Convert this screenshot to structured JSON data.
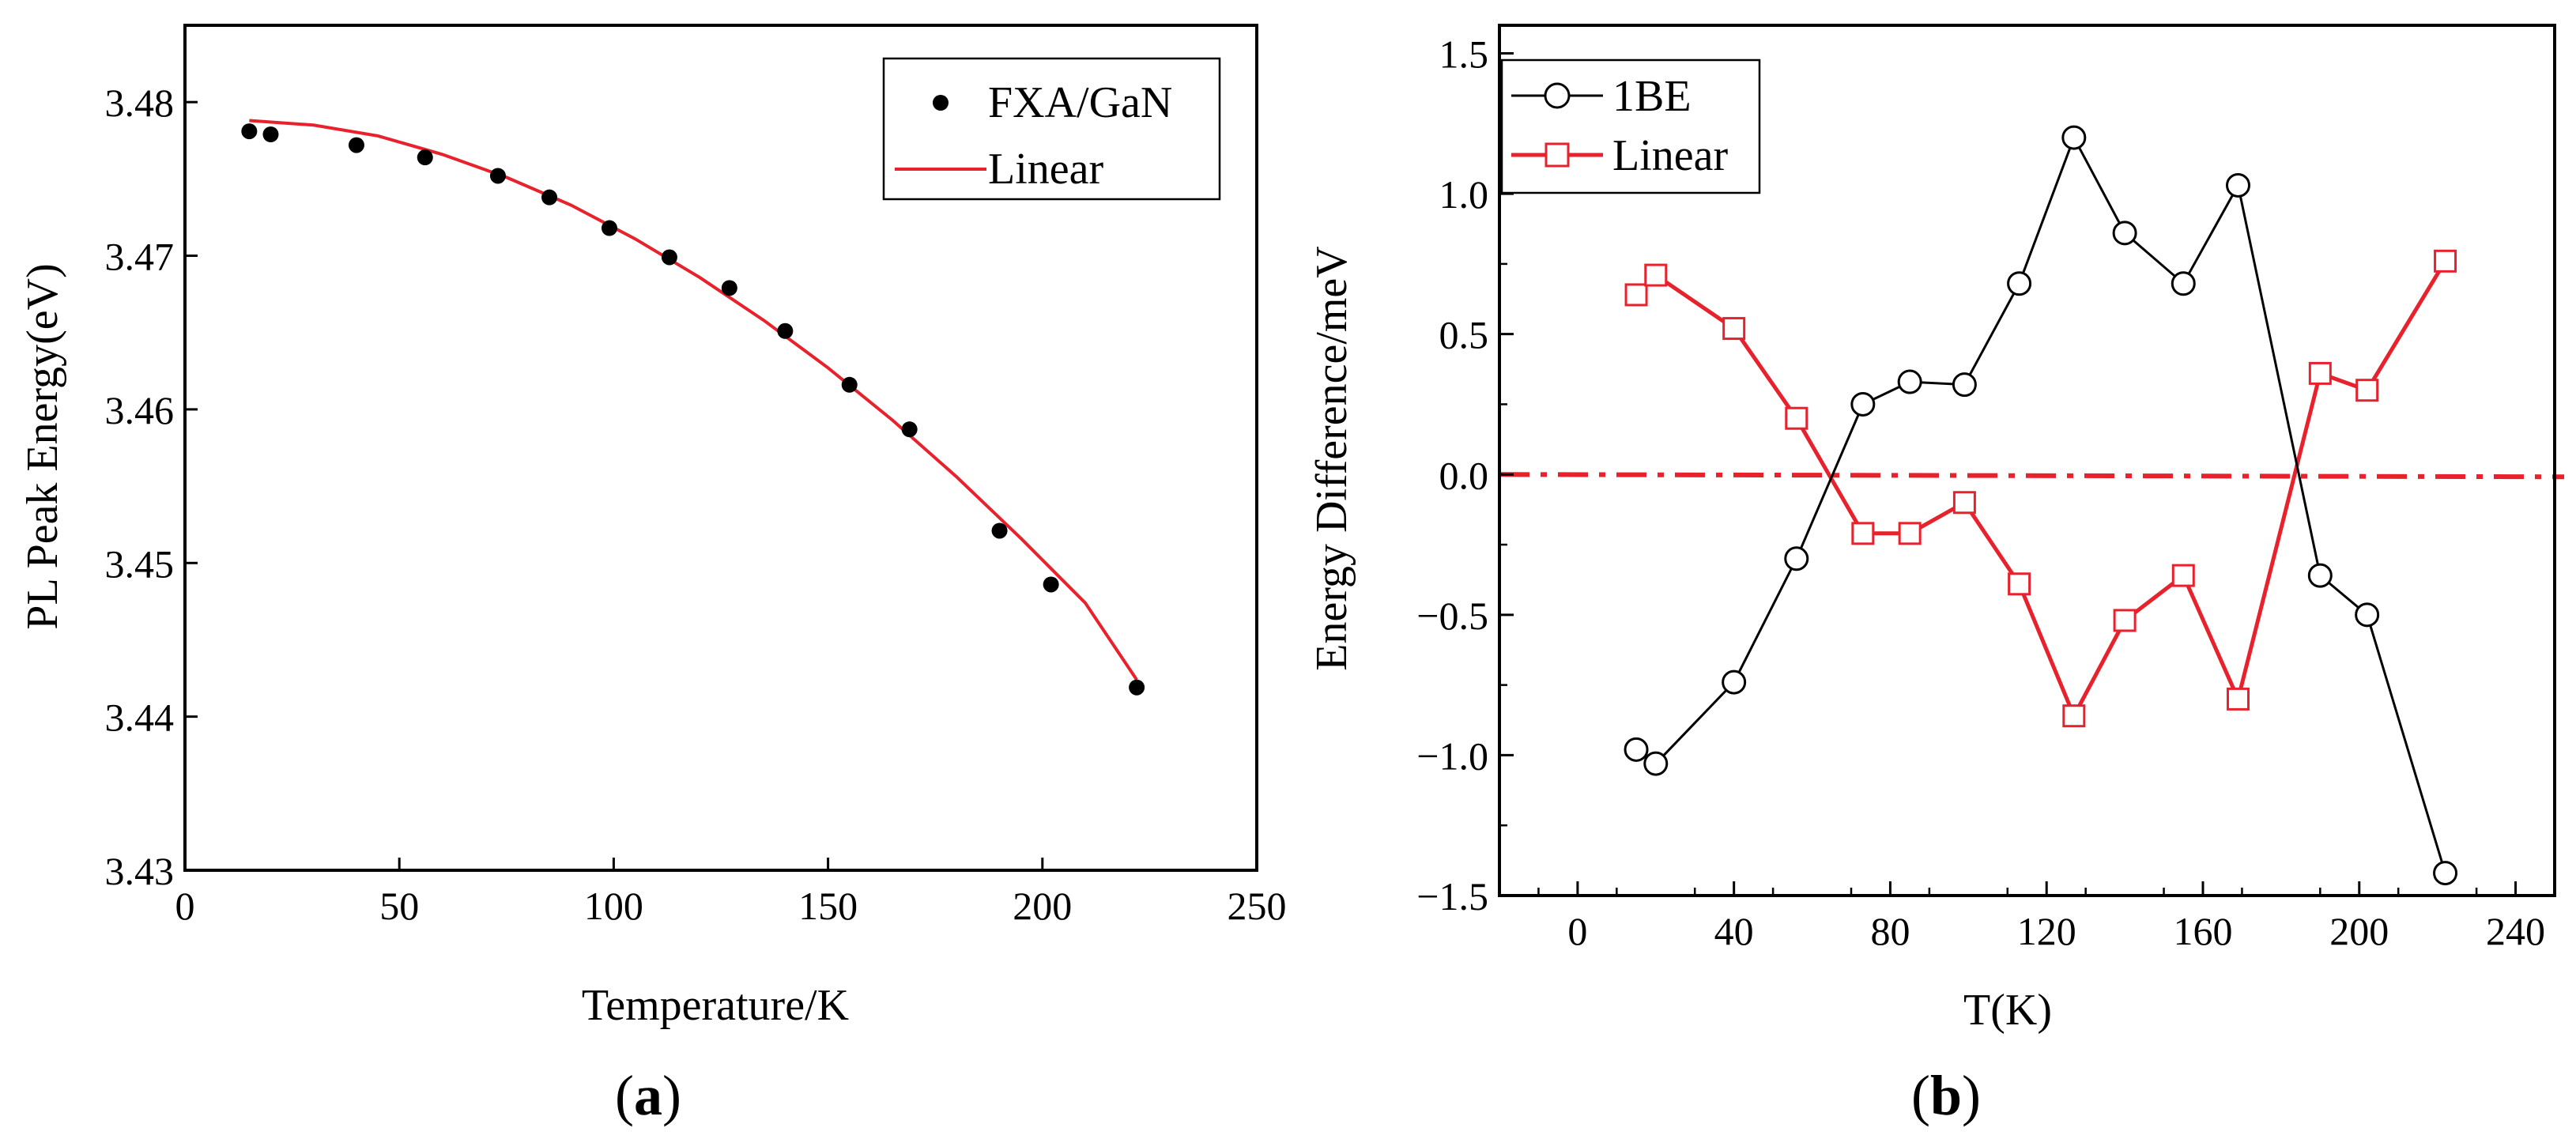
{
  "chart_data": [
    {
      "type": "scatter",
      "panel_label": "a",
      "title": "",
      "xlabel": "Temperature/K",
      "ylabel": "PL Peak Energy(eV)",
      "xlim": [
        0,
        250
      ],
      "ylim": [
        3.43,
        3.485
      ],
      "xticks": [
        0,
        50,
        100,
        150,
        200,
        250
      ],
      "yticks": [
        3.43,
        3.44,
        3.45,
        3.46,
        3.47,
        3.48
      ],
      "ytick_labels": [
        "3.43",
        "3.44",
        "3.45",
        "3.46",
        "3.47",
        "3.48"
      ],
      "grid": false,
      "legend_position": "top-right",
      "series": [
        {
          "name": "FXA/GaN",
          "kind": "scatter",
          "color": "#000000",
          "x": [
            15,
            20,
            40,
            56,
            73,
            85,
            99,
            113,
            127,
            140,
            155,
            169,
            190,
            202,
            222
          ],
          "y": [
            3.4781,
            3.4779,
            3.4772,
            3.4764,
            3.4752,
            3.4738,
            3.4718,
            3.4699,
            3.4679,
            3.4651,
            3.4616,
            3.4587,
            3.4521,
            3.4486,
            3.4419
          ]
        },
        {
          "name": "Linear",
          "kind": "line",
          "color": "#e8222d",
          "x": [
            15,
            30,
            45,
            60,
            75,
            90,
            105,
            120,
            135,
            150,
            165,
            180,
            195,
            210,
            222
          ],
          "y": [
            3.4788,
            3.4785,
            3.4778,
            3.4766,
            3.4751,
            3.4733,
            3.4711,
            3.4686,
            3.4658,
            3.4627,
            3.4593,
            3.4556,
            3.4516,
            3.4474,
            3.4424
          ]
        }
      ]
    },
    {
      "type": "line",
      "panel_label": "b",
      "title": "",
      "xlabel": "T(K)",
      "ylabel": "Energy Difference/meV",
      "xlim": [
        -20,
        250
      ],
      "ylim": [
        -1.5,
        1.6
      ],
      "xticks": [
        0,
        40,
        80,
        120,
        160,
        200,
        240
      ],
      "yticks": [
        -1.5,
        -1.0,
        -0.5,
        0.0,
        0.5,
        1.0,
        1.5
      ],
      "ytick_labels": [
        "−1.5",
        "−1.0",
        "−0.5",
        "0.0",
        "0.5",
        "1.0",
        "1.5"
      ],
      "grid": false,
      "legend_position": "top-left",
      "reference_line": {
        "y": 0.0,
        "style": "dash-dot",
        "color": "#e8222d"
      },
      "series": [
        {
          "name": "1BE",
          "marker": "circle",
          "color": "#000000",
          "x": [
            15,
            20,
            40,
            56,
            73,
            85,
            99,
            113,
            127,
            140,
            155,
            169,
            190,
            202,
            222
          ],
          "y": [
            -0.98,
            -1.03,
            -0.74,
            -0.3,
            0.25,
            0.33,
            0.32,
            0.68,
            1.2,
            0.86,
            0.68,
            1.03,
            -0.36,
            -0.5,
            -1.42
          ]
        },
        {
          "name": "Linear",
          "marker": "square",
          "color": "#e8222d",
          "x": [
            15,
            20,
            40,
            56,
            73,
            85,
            99,
            113,
            127,
            140,
            155,
            169,
            190,
            202,
            222
          ],
          "y": [
            0.64,
            0.71,
            0.52,
            0.2,
            -0.21,
            -0.21,
            -0.1,
            -0.39,
            -0.86,
            -0.52,
            -0.36,
            -0.8,
            0.36,
            0.3,
            0.76
          ]
        }
      ]
    }
  ]
}
